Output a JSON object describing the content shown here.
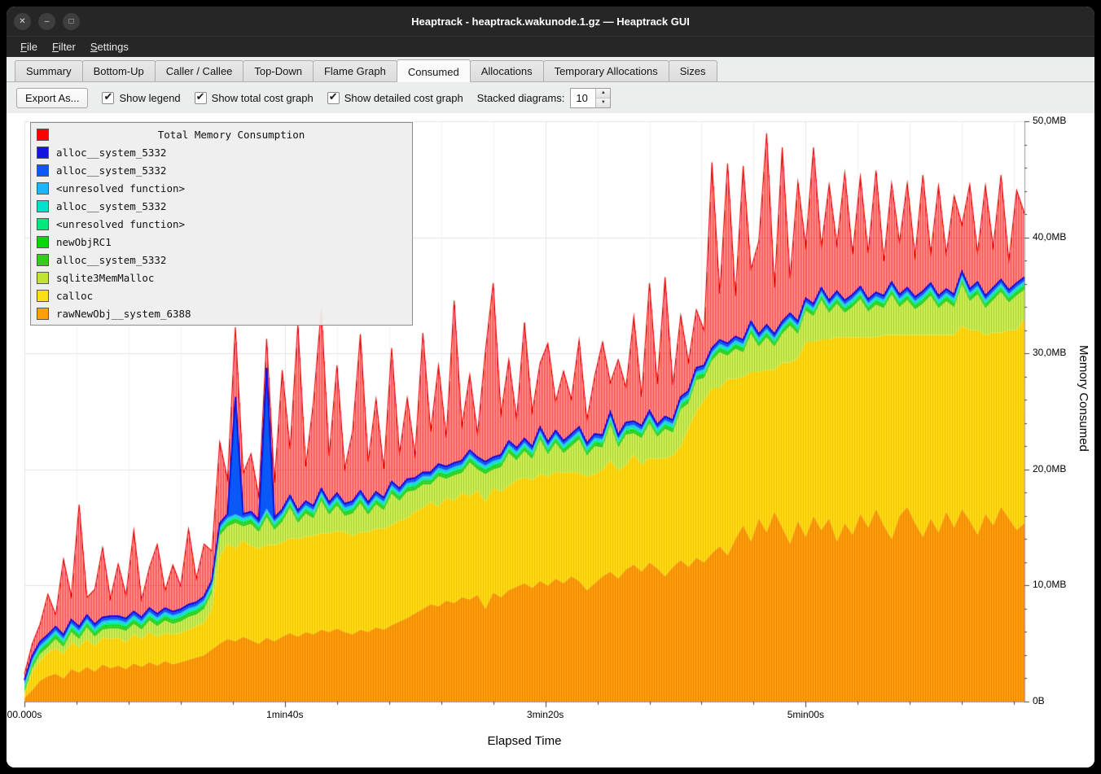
{
  "window": {
    "title": "Heaptrack - heaptrack.wakunode.1.gz — Heaptrack GUI",
    "controls": [
      {
        "name": "close",
        "glyph": "✕"
      },
      {
        "name": "minimize",
        "glyph": "–"
      },
      {
        "name": "maximize",
        "glyph": "□"
      }
    ]
  },
  "menu": {
    "items": [
      "File",
      "Filter",
      "Settings"
    ]
  },
  "tabs": {
    "items": [
      "Summary",
      "Bottom-Up",
      "Caller / Callee",
      "Top-Down",
      "Flame Graph",
      "Consumed",
      "Allocations",
      "Temporary Allocations",
      "Sizes"
    ],
    "active": "Consumed"
  },
  "toolbar": {
    "export_button": "Export As...",
    "check_icon": "✔",
    "checkboxes": [
      {
        "label": "Show legend",
        "checked": true
      },
      {
        "label": "Show total cost graph",
        "checked": true
      },
      {
        "label": "Show detailed cost graph",
        "checked": true
      }
    ],
    "stacked_label": "Stacked diagrams:",
    "stacked_value": "10",
    "spin_up_icon": "▲",
    "spin_down_icon": "▼"
  },
  "chart_data": {
    "type": "area",
    "stacked": true,
    "title": "Total Memory Consumption",
    "xlabel": "Elapsed Time",
    "ylabel": "Memory Consumed",
    "t_step": 3,
    "t_max": 384,
    "ylim_mb": [
      0,
      50
    ],
    "minor_x_tick_every": 20,
    "y_ticks": [
      {
        "label": "50,0MB",
        "mb": 50
      },
      {
        "label": "40,0MB",
        "mb": 40
      },
      {
        "label": "30,0MB",
        "mb": 30
      },
      {
        "label": "20,0MB",
        "mb": 20
      },
      {
        "label": "10,0MB",
        "mb": 10
      },
      {
        "label": "0B",
        "mb": 0
      }
    ],
    "x_ticks": [
      {
        "label": "00.000s",
        "t": 0
      },
      {
        "label": "1min40s",
        "t": 100
      },
      {
        "label": "3min20s",
        "t": 200
      },
      {
        "label": "5min00s",
        "t": 300
      }
    ],
    "legend": [
      {
        "label": "Total Memory Consumption",
        "color": "#ff0000",
        "title": true
      },
      {
        "label": "alloc__system_5332",
        "color": "#1414e0"
      },
      {
        "label": "alloc__system_5332",
        "color": "#0a58f5"
      },
      {
        "label": "<unresolved function>",
        "color": "#1fb4ff"
      },
      {
        "label": "alloc__system_5332",
        "color": "#00e2cb"
      },
      {
        "label": "<unresolved function>",
        "color": "#00e87e"
      },
      {
        "label": "newObjRC1",
        "color": "#0bd60b"
      },
      {
        "label": "alloc__system_5332",
        "color": "#35cc1e"
      },
      {
        "label": "sqlite3MemMalloc",
        "color": "#bfe431"
      },
      {
        "label": "calloc",
        "color": "#ffdf12"
      },
      {
        "label": "rawNewObj__system_6388",
        "color": "#ffa00a"
      }
    ],
    "series": [
      {
        "name": "rawNewObj__system_6388",
        "color": "#ffa00a",
        "stripe": "#e88600",
        "values": [
          0.3,
          1.0,
          1.8,
          2.2,
          2.4,
          2.0,
          2.8,
          2.5,
          3.0,
          2.6,
          3.2,
          2.9,
          3.1,
          2.8,
          3.3,
          3.0,
          3.4,
          3.1,
          3.5,
          3.2,
          3.4,
          3.6,
          3.8,
          4.0,
          4.5,
          5.0,
          5.4,
          5.2,
          5.6,
          5.3,
          5.0,
          5.5,
          5.2,
          5.6,
          5.9,
          5.6,
          6.0,
          5.8,
          6.2,
          6.0,
          6.3,
          6.0,
          5.8,
          6.2,
          6.0,
          6.4,
          6.2,
          6.6,
          6.9,
          7.2,
          7.6,
          8.0,
          8.4,
          8.2,
          8.7,
          8.5,
          9.0,
          8.8,
          9.2,
          8.0,
          9.4,
          9.0,
          9.6,
          9.9,
          10.2,
          9.8,
          10.4,
          10.0,
          10.6,
          10.2,
          10.8,
          10.4,
          9.6,
          10.2,
          10.8,
          11.2,
          10.6,
          11.4,
          11.8,
          11.2,
          12.0,
          11.5,
          10.8,
          11.6,
          12.2,
          11.6,
          12.4,
          12.0,
          12.8,
          13.4,
          12.6,
          14.0,
          15.2,
          13.8,
          15.8,
          14.6,
          16.4,
          15.0,
          13.6,
          15.6,
          14.2,
          16.0,
          14.8,
          15.8,
          13.8,
          15.4,
          14.4,
          16.2,
          15.0,
          16.6,
          15.2,
          14.0,
          16.0,
          16.8,
          15.4,
          14.2,
          15.8,
          14.6,
          16.4,
          15.0,
          16.6,
          15.6,
          14.4,
          16.2,
          15.2,
          16.8,
          15.8,
          14.8,
          15.4
        ]
      },
      {
        "name": "calloc",
        "color": "#ffdf12",
        "stripe": "#f2bd06",
        "values": [
          0.3,
          1.5,
          1.7,
          2.0,
          2.2,
          2.1,
          2.3,
          2.2,
          2.4,
          2.2,
          2.3,
          2.5,
          2.4,
          2.3,
          2.5,
          2.4,
          2.6,
          2.5,
          2.4,
          2.6,
          2.5,
          2.6,
          2.7,
          2.8,
          3.5,
          7.5,
          8.2,
          8.0,
          8.3,
          8.1,
          8.2,
          8.0,
          8.3,
          8.1,
          8.2,
          8.4,
          8.2,
          8.5,
          8.3,
          8.5,
          8.4,
          8.6,
          8.5,
          8.4,
          8.6,
          8.5,
          8.7,
          8.6,
          8.7,
          8.6,
          8.8,
          8.7,
          8.8,
          8.6,
          8.9,
          8.8,
          9.0,
          8.9,
          9.0,
          9.2,
          9.0,
          9.1,
          9.0,
          9.2,
          9.1,
          9.3,
          9.2,
          9.4,
          9.2,
          9.5,
          9.0,
          9.3,
          9.8,
          9.4,
          9.2,
          9.6,
          9.3,
          9.0,
          9.5,
          9.2,
          9.0,
          9.4,
          10.2,
          9.6,
          9.8,
          12.0,
          12.6,
          14.0,
          14.2,
          13.6,
          15.2,
          13.8,
          12.8,
          14.6,
          12.6,
          14.0,
          12.2,
          14.2,
          15.6,
          14.0,
          16.8,
          15.0,
          16.4,
          15.4,
          17.6,
          16.0,
          17.0,
          15.2,
          16.4,
          14.8,
          16.4,
          17.6,
          15.6,
          14.8,
          16.2,
          17.4,
          15.8,
          17.0,
          15.2,
          16.6,
          15.8,
          16.4,
          17.6,
          15.4,
          16.6,
          15.0,
          16.2,
          17.2,
          17.6
        ]
      },
      {
        "name": "sqlite3MemMalloc",
        "color": "#cdee5a",
        "stripe": "#abd426",
        "values": [
          0.2,
          0.4,
          0.6,
          0.5,
          0.8,
          0.6,
          0.9,
          0.7,
          1.0,
          0.8,
          0.7,
          0.9,
          0.8,
          1.0,
          0.9,
          0.8,
          1.0,
          0.9,
          1.1,
          0.9,
          1.0,
          1.1,
          1.0,
          1.2,
          1.4,
          1.8,
          1.5,
          2.2,
          1.2,
          1.9,
          1.4,
          2.4,
          1.3,
          1.8,
          2.6,
          1.4,
          2.0,
          1.5,
          2.8,
          1.6,
          2.2,
          1.4,
          1.9,
          2.5,
          1.5,
          2.1,
          1.6,
          2.7,
          1.7,
          2.3,
          1.8,
          2.0,
          1.5,
          2.6,
          1.6,
          2.2,
          1.7,
          2.9,
          1.8,
          2.4,
          1.6,
          2.1,
          2.8,
          1.7,
          2.3,
          1.8,
          3.0,
          1.9,
          2.5,
          1.7,
          2.2,
          2.9,
          1.8,
          2.4,
          1.9,
          3.1,
          2.0,
          2.6,
          1.8,
          2.3,
          3.0,
          1.9,
          2.5,
          2.0,
          3.2,
          2.1,
          2.7,
          1.9,
          2.4,
          3.1,
          2.0,
          2.6,
          2.1,
          3.3,
          2.2,
          2.8,
          2.0,
          2.5,
          3.2,
          2.1,
          2.7,
          2.2,
          3.4,
          2.3,
          2.9,
          2.1,
          2.6,
          3.3,
          2.2,
          2.8,
          2.3,
          3.5,
          2.4,
          3.0,
          2.2,
          2.7,
          3.4,
          2.3,
          2.9,
          2.4,
          3.6,
          2.5,
          3.1,
          2.3,
          2.8,
          3.5,
          2.4,
          3.0,
          2.5
        ]
      },
      {
        "name": "alloc__system_5332",
        "color": "#35cc1e",
        "const": 0.2
      },
      {
        "name": "newObjRC1",
        "color": "#0bd60b",
        "const": 0.15
      },
      {
        "name": "<unresolved function>",
        "color": "#00e87e",
        "const": 0.12
      },
      {
        "name": "alloc__system_5332",
        "color": "#00e2cb",
        "const": 0.15
      },
      {
        "name": "<unresolved function>",
        "color": "#1fb4ff",
        "const": 0.12
      },
      {
        "name": "alloc__system_5332",
        "color": "#0a58f5",
        "const": 0.2,
        "spikes": [
          {
            "i": 27,
            "v": 10.0
          },
          {
            "i": 31,
            "v": 12.0
          }
        ]
      },
      {
        "name": "alloc__system_5332",
        "color": "#1414e0",
        "const": 0.12
      }
    ],
    "total": {
      "label": "Total Memory Consumption",
      "color": "#ff0000",
      "extra": [
        0.5,
        1.0,
        1.5,
        3.5,
        1.0,
        6.5,
        2.0,
        10.5,
        1.5,
        3.0,
        6.0,
        1.5,
        4.5,
        2.0,
        7.0,
        1.5,
        3.5,
        6.0,
        1.5,
        4.0,
        2.0,
        6.5,
        2.0,
        4.5,
        2.5,
        7.0,
        3.0,
        6.0,
        3.5,
        5.0,
        2.0,
        2.5,
        3.0,
        12.0,
        4.0,
        16.0,
        3.0,
        9.0,
        15.5,
        4.0,
        11.0,
        3.0,
        6.0,
        13.5,
        3.5,
        8.0,
        2.5,
        11.5,
        3.0,
        7.0,
        2.0,
        12.0,
        3.5,
        8.5,
        2.5,
        14.0,
        3.0,
        6.5,
        2.0,
        9.5,
        15.0,
        3.5,
        7.0,
        2.5,
        10.0,
        3.0,
        5.5,
        8.5,
        2.5,
        6.0,
        3.0,
        7.5,
        2.0,
        5.0,
        8.0,
        2.5,
        6.5,
        3.0,
        9.0,
        2.5,
        11.0,
        3.5,
        12.0,
        3.0,
        7.0,
        2.5,
        5.0,
        3.0,
        16.0,
        4.0,
        15.5,
        3.5,
        15.0,
        4.5,
        8.0,
        16.5,
        4.0,
        15.0,
        3.0,
        12.0,
        4.5,
        13.5,
        3.5,
        10.0,
        4.0,
        11.0,
        3.5,
        9.5,
        4.0,
        10.5,
        3.0,
        8.5,
        4.5,
        9.0,
        3.5,
        10.0,
        2.5,
        9.5,
        3.0,
        8.5,
        4.0,
        9.0,
        2.5,
        9.5,
        3.5,
        9.0,
        2.5,
        8.0,
        5.5
      ]
    }
  }
}
